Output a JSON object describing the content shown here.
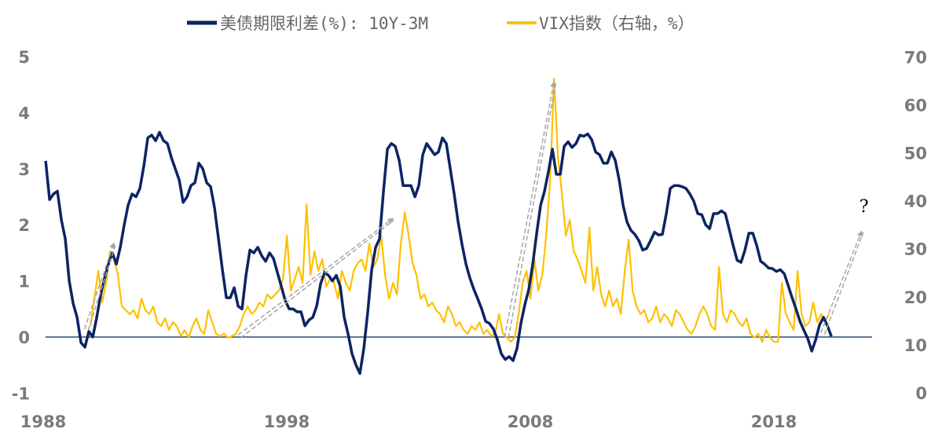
{
  "chart_data": {
    "type": "line",
    "title": "",
    "legend": {
      "position": "top",
      "entries": [
        "美债期限利差(%): 10Y-3M",
        "VIX指数（右轴，%）"
      ]
    },
    "colors": {
      "spread": "#0d2463",
      "vix": "#ffc000",
      "arrow": "#a6a6a6",
      "zero_line": "#2f4a7a"
    },
    "x_axis": {
      "ticks": [
        "1988",
        "1998",
        "2008",
        "2018"
      ],
      "tick_values": [
        1988,
        1998,
        2008,
        2018
      ],
      "range": [
        1988,
        2022
      ]
    },
    "y_left": {
      "ticks": [
        "5",
        "4",
        "3",
        "2",
        "1",
        "0",
        "-1"
      ],
      "tick_values": [
        5,
        4,
        3,
        2,
        1,
        0,
        -1
      ],
      "range": [
        -1,
        5
      ]
    },
    "y_right": {
      "ticks": [
        "70",
        "60",
        "50",
        "40",
        "30",
        "20",
        "10",
        "0"
      ],
      "tick_values": [
        70,
        60,
        50,
        40,
        30,
        20,
        10,
        0
      ],
      "range": [
        0,
        70
      ]
    },
    "series": [
      {
        "name": "美债期限利差(%): 10Y-3M",
        "axis": "left",
        "start_year": 1988.1,
        "step_years": 0.1613,
        "values": [
          3.14,
          2.45,
          2.55,
          2.6,
          2.09,
          1.75,
          1.0,
          0.6,
          0.35,
          -0.1,
          -0.18,
          0.1,
          0.0,
          0.35,
          0.75,
          1.05,
          1.3,
          1.5,
          1.3,
          1.6,
          2.0,
          2.35,
          2.55,
          2.5,
          2.65,
          3.05,
          3.55,
          3.6,
          3.5,
          3.65,
          3.5,
          3.45,
          3.2,
          3.0,
          2.8,
          2.4,
          2.5,
          2.7,
          2.75,
          3.1,
          3.0,
          2.75,
          2.68,
          2.3,
          1.75,
          1.2,
          0.7,
          0.7,
          0.88,
          0.55,
          0.5,
          1.1,
          1.55,
          1.5,
          1.6,
          1.45,
          1.35,
          1.5,
          1.4,
          1.15,
          0.9,
          0.65,
          0.5,
          0.5,
          0.45,
          0.45,
          0.2,
          0.3,
          0.35,
          0.55,
          0.95,
          1.15,
          1.1,
          1.0,
          1.1,
          0.9,
          0.35,
          0.05,
          -0.3,
          -0.5,
          -0.65,
          -0.2,
          0.45,
          1.2,
          1.6,
          1.75,
          2.6,
          3.35,
          3.45,
          3.4,
          3.15,
          2.7,
          2.7,
          2.7,
          2.5,
          2.7,
          3.25,
          3.45,
          3.35,
          3.25,
          3.3,
          3.55,
          3.45,
          3.0,
          2.55,
          2.05,
          1.65,
          1.3,
          1.05,
          0.85,
          0.68,
          0.5,
          0.28,
          0.24,
          0.14,
          -0.05,
          -0.3,
          -0.4,
          -0.35,
          -0.42,
          -0.2,
          0.25,
          0.58,
          0.85,
          1.3,
          1.85,
          2.35,
          2.6,
          2.95,
          3.35,
          2.9,
          2.9,
          3.4,
          3.48,
          3.38,
          3.45,
          3.6,
          3.58,
          3.62,
          3.52,
          3.3,
          3.25,
          3.1,
          3.1,
          3.3,
          3.15,
          2.8,
          2.35,
          2.05,
          1.9,
          1.83,
          1.72,
          1.55,
          1.58,
          1.72,
          1.87,
          1.82,
          1.83,
          2.2,
          2.65,
          2.7,
          2.7,
          2.68,
          2.65,
          2.55,
          2.42,
          2.2,
          2.18,
          2.0,
          1.93,
          2.2,
          2.2,
          2.25,
          2.2,
          1.92,
          1.63,
          1.37,
          1.33,
          1.55,
          1.85,
          1.85,
          1.63,
          1.35,
          1.3,
          1.23,
          1.22,
          1.17,
          1.2,
          1.13,
          0.92,
          0.7,
          0.5,
          0.28,
          0.12,
          -0.03,
          -0.25,
          -0.05,
          0.22,
          0.35,
          0.2,
          0.01
        ]
      },
      {
        "name": "VIX指数（右轴，%）",
        "axis": "right",
        "start_year": 1989.94,
        "step_years": 0.1613,
        "values": [
          13.9,
          19.6,
          25.4,
          18.8,
          22.9,
          29.5,
          27.8,
          24.5,
          18,
          17.2,
          16.4,
          17.2,
          15.5,
          19.6,
          17.2,
          16.4,
          18,
          14.7,
          13.9,
          15.5,
          13.1,
          14.7,
          13.9,
          11.8,
          13.1,
          11.5,
          13.9,
          15.5,
          13.1,
          12.3,
          17.2,
          14.7,
          12.3,
          11.8,
          12.3,
          11.5,
          11.8,
          12.3,
          13.9,
          16.4,
          18,
          16.4,
          17.2,
          18.8,
          18,
          20.5,
          19.6,
          20.5,
          21.3,
          23.7,
          32.7,
          21.3,
          23.7,
          26.2,
          22.9,
          39.3,
          24.5,
          29.5,
          25.4,
          27.8,
          22.1,
          23.7,
          22.9,
          19.6,
          25.4,
          22.9,
          21.3,
          25.4,
          27,
          27.8,
          25.4,
          31.1,
          26.2,
          27.8,
          32.7,
          24.5,
          19.6,
          22.9,
          20.5,
          31.1,
          37.6,
          32.7,
          27,
          24.5,
          19.6,
          20.5,
          18,
          18.8,
          17.2,
          16.4,
          14.7,
          18,
          16.4,
          13.9,
          14.7,
          13.1,
          12.3,
          13.9,
          13.1,
          14.7,
          12.3,
          13.1,
          11.8,
          12.3,
          16.4,
          12.3,
          11.5,
          10.6,
          11.5,
          16.4,
          22.9,
          25.4,
          19.6,
          27.8,
          21.3,
          24.5,
          32.7,
          44.2,
          65.5,
          49.1,
          41.7,
          32.7,
          36,
          29.5,
          27.8,
          25.4,
          22.9,
          34.4,
          21.3,
          26.2,
          20.5,
          18,
          21.3,
          18,
          19.6,
          16.4,
          25.4,
          31.9,
          21.3,
          18,
          16.4,
          17.2,
          14.7,
          15.5,
          18,
          14.7,
          16.4,
          15.5,
          13.9,
          17.2,
          16.4,
          14.7,
          13.1,
          12.3,
          13.9,
          16.4,
          18,
          16.4,
          13.9,
          13.1,
          26.2,
          16.4,
          14.7,
          17.2,
          16.4,
          14.7,
          13.9,
          15.5,
          12.3,
          11.5,
          12.3,
          10.6,
          13.1,
          11.5,
          10.6,
          10.6,
          22.9,
          16.4,
          14.7,
          13.1,
          25.4,
          16.4,
          13.9,
          14.7,
          18.8,
          14.7,
          16.4,
          14.7,
          16.4
        ]
      }
    ],
    "annotations": {
      "arrows": [
        {
          "from": [
            1989.77,
            0.13
          ],
          "to": [
            1990.9,
            1.67
          ]
        },
        {
          "from": [
            1996.05,
            0.01
          ],
          "to": [
            2002.35,
            2.11
          ]
        },
        {
          "from": [
            2007.02,
            -0.01
          ],
          "to": [
            2008.97,
            4.54
          ]
        },
        {
          "from": [
            2020.0,
            0.06
          ],
          "to": [
            2021.6,
            1.88
          ]
        }
      ],
      "question_mark": {
        "text": "?",
        "at": [
          2021.7,
          2.23
        ]
      }
    }
  }
}
